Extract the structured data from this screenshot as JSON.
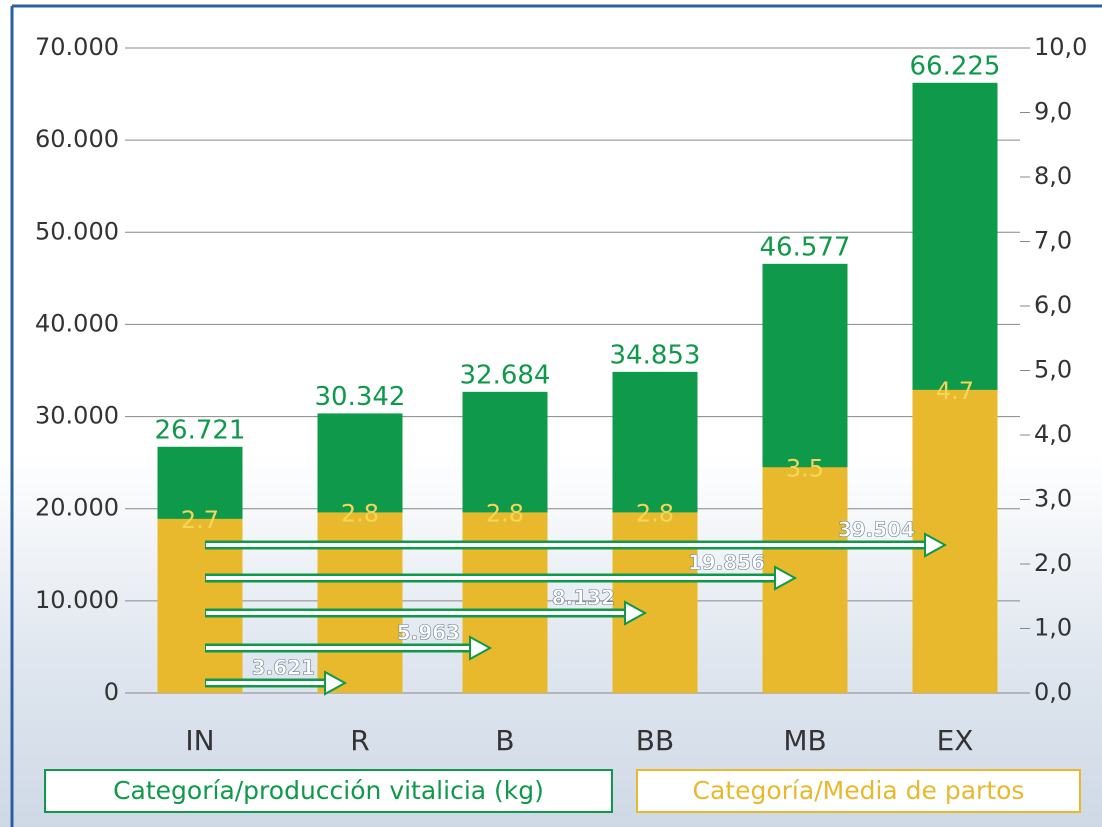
{
  "chart_data": {
    "type": "bar",
    "categories": [
      "IN",
      "R",
      "B",
      "BB",
      "MB",
      "EX"
    ],
    "series": [
      {
        "name": "Categoría/producción vitalicia (kg)",
        "color": "#0e9a4a",
        "values": [
          26721,
          30342,
          32684,
          34853,
          46577,
          66225
        ],
        "value_labels": [
          "26.721",
          "30.342",
          "32.684",
          "34.853",
          "46.577",
          "66.225"
        ]
      },
      {
        "name": "Categoría/Media de partos",
        "color": "#e8b92c",
        "axis": "y2",
        "values": [
          2.7,
          2.8,
          2.8,
          2.8,
          3.5,
          4.7
        ]
      }
    ],
    "differences": {
      "values": [
        3621,
        5963,
        8132,
        19856,
        39504
      ],
      "value_labels": [
        "3.621",
        "5.963",
        "8.132",
        "19.856",
        "39.504"
      ]
    },
    "ylim": [
      0,
      70000
    ],
    "yticks": [
      0,
      {
        "value": 10000,
        "label": "10.000"
      },
      {
        "value": 20000,
        "label": "20.000"
      },
      {
        "value": 30000,
        "label": "30.000"
      },
      {
        "value": 40000,
        "label": "40.000"
      },
      {
        "value": 50000,
        "label": "50.000"
      },
      {
        "value": 60000,
        "label": "60.000"
      },
      {
        "value": 70000,
        "label": "70.000"
      }
    ],
    "y2lim": [
      0,
      10
    ],
    "y2ticks": [
      {
        "value": 0,
        "label": "0,0"
      },
      {
        "value": 1,
        "label": "1,0"
      },
      {
        "value": 2,
        "label": "2,0"
      },
      {
        "value": 3,
        "label": "3,0"
      },
      {
        "value": 4,
        "label": "4,0"
      },
      {
        "value": 5,
        "label": "5,0"
      },
      {
        "value": 6,
        "label": "6,0"
      },
      {
        "value": 7,
        "label": "7,0"
      },
      {
        "value": 8,
        "label": "8,0"
      },
      {
        "value": 9,
        "label": "9,0"
      },
      {
        "value": 10,
        "label": "10,0"
      }
    ],
    "grid": true
  }
}
